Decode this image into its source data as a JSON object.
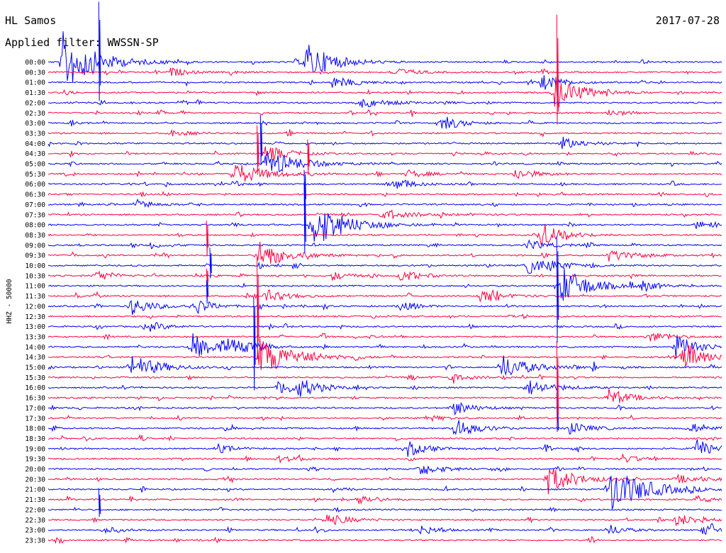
{
  "header": {
    "station": "HL Samos",
    "date": "2017-07-28",
    "filter": "Applied filter: WWSSN-SP"
  },
  "chart_data": {
    "type": "line",
    "title": "HL Samos",
    "ylabel": "HHZ - 50000",
    "tick_labels": [
      "00:00",
      "00:30",
      "01:00",
      "01:30",
      "02:00",
      "02:30",
      "03:00",
      "03:30",
      "04:00",
      "04:30",
      "05:00",
      "05:30",
      "06:00",
      "06:30",
      "07:00",
      "07:30",
      "08:00",
      "08:30",
      "09:00",
      "09:30",
      "10:00",
      "10:30",
      "11:00",
      "11:30",
      "12:00",
      "12:30",
      "13:00",
      "13:30",
      "14:00",
      "14:30",
      "15:00",
      "15:30",
      "16:00",
      "16:30",
      "17:00",
      "17:30",
      "18:00",
      "18:30",
      "19:00",
      "19:30",
      "20:00",
      "20:30",
      "21:00",
      "21:30",
      "22:00",
      "22:30",
      "23:00",
      "23:30"
    ],
    "series_colors": [
      "#0000ff",
      "#ff0040"
    ],
    "x_range_minutes": [
      0,
      30
    ],
    "grid": false,
    "events": [
      {
        "row": 0,
        "t": 0.02,
        "amp": 45,
        "dur": 0.06
      },
      {
        "row": 0,
        "t": 0.38,
        "amp": 30,
        "dur": 0.05
      },
      {
        "row": 1,
        "t": 0.18,
        "amp": 7,
        "dur": 0.03
      },
      {
        "row": 1,
        "t": 0.51,
        "amp": 7,
        "dur": 0.04
      },
      {
        "row": 2,
        "t": 0.42,
        "amp": 9,
        "dur": 0.04
      },
      {
        "row": 2,
        "t": 0.73,
        "amp": 12,
        "dur": 0.04
      },
      {
        "row": 3,
        "t": 0.75,
        "amp": 25,
        "dur": 0.05
      },
      {
        "row": 4,
        "t": 0.46,
        "amp": 8,
        "dur": 0.05
      },
      {
        "row": 5,
        "t": 0.83,
        "amp": 6,
        "dur": 0.03
      },
      {
        "row": 6,
        "t": 0.58,
        "amp": 12,
        "dur": 0.04
      },
      {
        "row": 7,
        "t": 0.18,
        "amp": 6,
        "dur": 0.03
      },
      {
        "row": 8,
        "t": 0.76,
        "amp": 10,
        "dur": 0.04
      },
      {
        "row": 9,
        "t": 0.32,
        "amp": 14,
        "dur": 0.04
      },
      {
        "row": 10,
        "t": 0.32,
        "amp": 20,
        "dur": 0.06
      },
      {
        "row": 11,
        "t": 0.27,
        "amp": 18,
        "dur": 0.06
      },
      {
        "row": 11,
        "t": 0.53,
        "amp": 6,
        "dur": 0.04
      },
      {
        "row": 11,
        "t": 0.69,
        "amp": 9,
        "dur": 0.04
      },
      {
        "row": 12,
        "t": 0.51,
        "amp": 8,
        "dur": 0.04
      },
      {
        "row": 14,
        "t": 0.13,
        "amp": 8,
        "dur": 0.03
      },
      {
        "row": 15,
        "t": 0.49,
        "amp": 5,
        "dur": 0.08
      },
      {
        "row": 16,
        "t": 0.39,
        "amp": 35,
        "dur": 0.06
      },
      {
        "row": 16,
        "t": 0.96,
        "amp": 6,
        "dur": 0.03
      },
      {
        "row": 17,
        "t": 0.73,
        "amp": 18,
        "dur": 0.04
      },
      {
        "row": 18,
        "t": 0.15,
        "amp": 5,
        "dur": 0.03
      },
      {
        "row": 18,
        "t": 0.71,
        "amp": 8,
        "dur": 0.04
      },
      {
        "row": 19,
        "t": 0.31,
        "amp": 22,
        "dur": 0.05
      },
      {
        "row": 19,
        "t": 0.83,
        "amp": 9,
        "dur": 0.05
      },
      {
        "row": 20,
        "t": 0.71,
        "amp": 12,
        "dur": 0.06
      },
      {
        "row": 21,
        "t": 0.07,
        "amp": 10,
        "dur": 0.03
      },
      {
        "row": 21,
        "t": 0.42,
        "amp": 7,
        "dur": 0.03
      },
      {
        "row": 21,
        "t": 0.52,
        "amp": 9,
        "dur": 0.04
      },
      {
        "row": 22,
        "t": 0.76,
        "amp": 30,
        "dur": 0.05
      },
      {
        "row": 22,
        "t": 0.88,
        "amp": 8,
        "dur": 0.03
      },
      {
        "row": 23,
        "t": 0.32,
        "amp": 10,
        "dur": 0.04
      },
      {
        "row": 23,
        "t": 0.64,
        "amp": 10,
        "dur": 0.04
      },
      {
        "row": 24,
        "t": 0.12,
        "amp": 14,
        "dur": 0.04
      },
      {
        "row": 24,
        "t": 0.22,
        "amp": 12,
        "dur": 0.03
      },
      {
        "row": 24,
        "t": 0.52,
        "amp": 8,
        "dur": 0.03
      },
      {
        "row": 26,
        "t": 0.15,
        "amp": 8,
        "dur": 0.03
      },
      {
        "row": 27,
        "t": 0.89,
        "amp": 8,
        "dur": 0.04
      },
      {
        "row": 28,
        "t": 0.21,
        "amp": 22,
        "dur": 0.05
      },
      {
        "row": 28,
        "t": 0.26,
        "amp": 14,
        "dur": 0.04
      },
      {
        "row": 28,
        "t": 0.93,
        "amp": 20,
        "dur": 0.04
      },
      {
        "row": 29,
        "t": 0.31,
        "amp": 30,
        "dur": 0.06
      },
      {
        "row": 29,
        "t": 0.94,
        "amp": 22,
        "dur": 0.05
      },
      {
        "row": 30,
        "t": 0.12,
        "amp": 20,
        "dur": 0.05
      },
      {
        "row": 30,
        "t": 0.67,
        "amp": 20,
        "dur": 0.05
      },
      {
        "row": 31,
        "t": 0.59,
        "amp": 6,
        "dur": 0.04
      },
      {
        "row": 32,
        "t": 0.34,
        "amp": 12,
        "dur": 0.04
      },
      {
        "row": 32,
        "t": 0.37,
        "amp": 12,
        "dur": 0.04
      },
      {
        "row": 32,
        "t": 0.71,
        "amp": 12,
        "dur": 0.05
      },
      {
        "row": 33,
        "t": 0.83,
        "amp": 14,
        "dur": 0.04
      },
      {
        "row": 34,
        "t": 0.6,
        "amp": 10,
        "dur": 0.04
      },
      {
        "row": 35,
        "t": 0.56,
        "amp": 5,
        "dur": 0.03
      },
      {
        "row": 36,
        "t": 0.6,
        "amp": 16,
        "dur": 0.04
      },
      {
        "row": 36,
        "t": 0.77,
        "amp": 10,
        "dur": 0.04
      },
      {
        "row": 36,
        "t": 0.95,
        "amp": 9,
        "dur": 0.03
      },
      {
        "row": 38,
        "t": 0.25,
        "amp": 7,
        "dur": 0.03
      },
      {
        "row": 38,
        "t": 0.53,
        "amp": 12,
        "dur": 0.04
      },
      {
        "row": 38,
        "t": 0.96,
        "amp": 14,
        "dur": 0.04
      },
      {
        "row": 39,
        "t": 0.34,
        "amp": 7,
        "dur": 0.03
      },
      {
        "row": 39,
        "t": 0.85,
        "amp": 7,
        "dur": 0.03
      },
      {
        "row": 40,
        "t": 0.55,
        "amp": 10,
        "dur": 0.04
      },
      {
        "row": 41,
        "t": 0.74,
        "amp": 22,
        "dur": 0.05
      },
      {
        "row": 41,
        "t": 0.93,
        "amp": 6,
        "dur": 0.06
      },
      {
        "row": 42,
        "t": 0.83,
        "amp": 35,
        "dur": 0.07
      },
      {
        "row": 43,
        "t": 0.46,
        "amp": 9,
        "dur": 0.03
      },
      {
        "row": 43,
        "t": 0.96,
        "amp": 6,
        "dur": 0.03
      },
      {
        "row": 45,
        "t": 0.41,
        "amp": 10,
        "dur": 0.04
      },
      {
        "row": 45,
        "t": 0.93,
        "amp": 10,
        "dur": 0.04
      },
      {
        "row": 46,
        "t": 0.08,
        "amp": 6,
        "dur": 0.03
      },
      {
        "row": 46,
        "t": 0.55,
        "amp": 8,
        "dur": 0.03
      },
      {
        "row": 46,
        "t": 0.83,
        "amp": 9,
        "dur": 0.03
      },
      {
        "row": 46,
        "t": 0.97,
        "amp": 10,
        "dur": 0.03
      }
    ],
    "spikes": [
      {
        "row": 0,
        "t": 0.075,
        "up": 85,
        "down": 55
      },
      {
        "row": 3,
        "t": 0.755,
        "up": 110,
        "down": 45
      },
      {
        "row": 8,
        "t": 0.315,
        "up": 40,
        "down": 30
      },
      {
        "row": 9,
        "t": 0.31,
        "up": 40,
        "down": 30
      },
      {
        "row": 9,
        "t": 0.385,
        "up": 20,
        "down": 30
      },
      {
        "row": 12,
        "t": 0.38,
        "up": 20,
        "down": 35
      },
      {
        "row": 16,
        "t": 0.38,
        "up": 60,
        "down": 40
      },
      {
        "row": 17,
        "t": 0.235,
        "up": 20,
        "down": 30
      },
      {
        "row": 20,
        "t": 0.24,
        "up": 25,
        "down": 18
      },
      {
        "row": 21,
        "t": 0.235,
        "up": 10,
        "down": 15
      },
      {
        "row": 22,
        "t": 0.235,
        "up": 8,
        "down": 25
      },
      {
        "row": 25,
        "t": 0.31,
        "up": 85,
        "down": 60
      },
      {
        "row": 26,
        "t": 0.305,
        "up": 40,
        "down": 90
      },
      {
        "row": 22,
        "t": 0.755,
        "up": 70,
        "down": 80
      },
      {
        "row": 36,
        "t": 0.755,
        "up": 50,
        "down": 5
      },
      {
        "row": 33,
        "t": 0.755,
        "up": 80,
        "down": 40
      },
      {
        "row": 44,
        "t": 0.075,
        "up": 30,
        "down": 10
      }
    ]
  }
}
